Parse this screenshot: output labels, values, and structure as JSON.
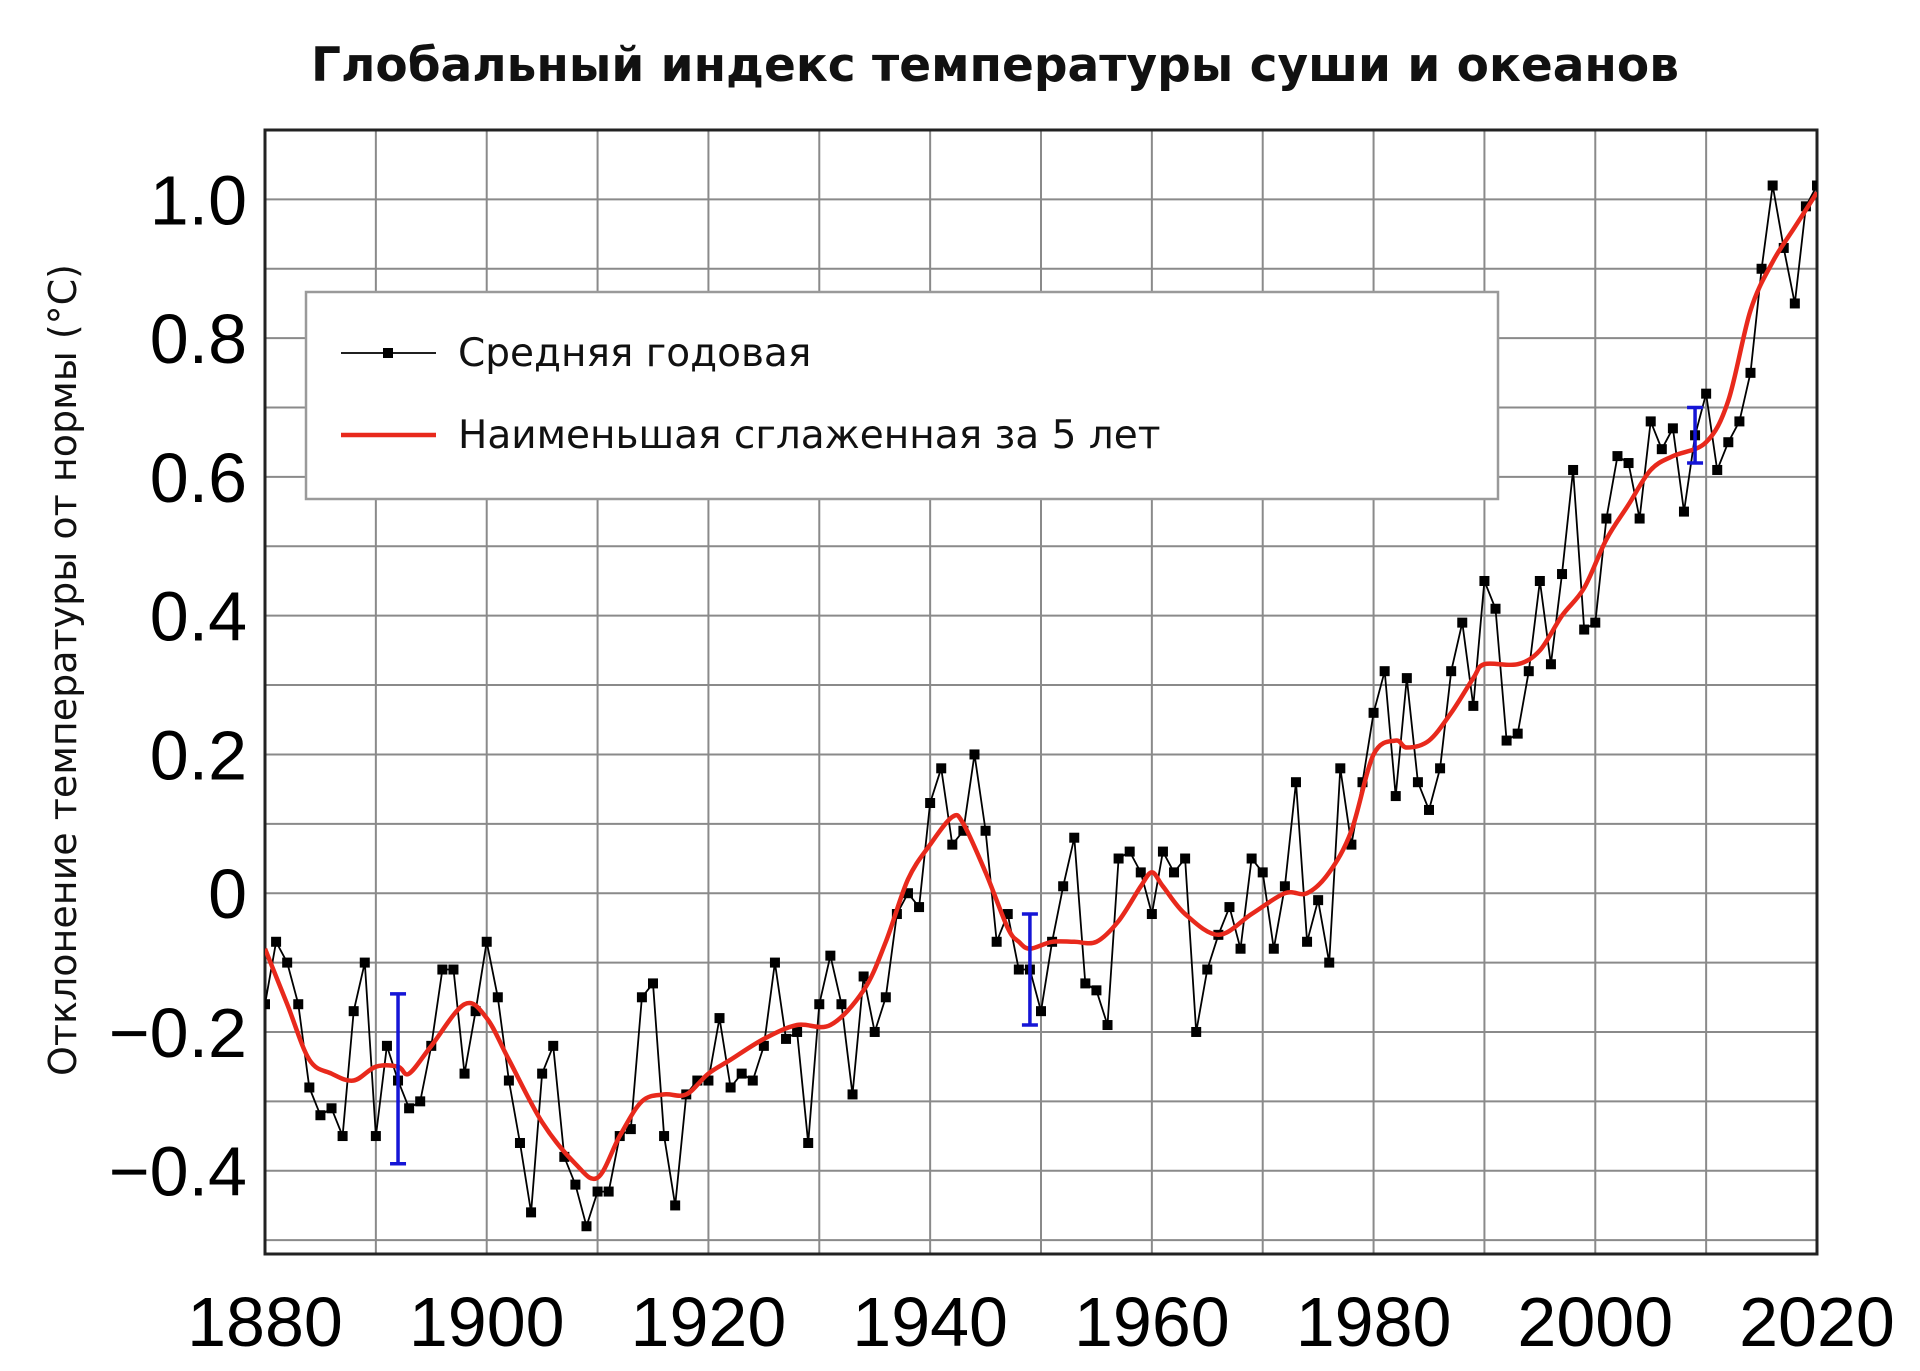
{
  "chart_data": {
    "type": "line",
    "title": "Глобальный индекс температуры суши и океанов",
    "ylabel": "Отклонение температуры от нормы (°C)",
    "xlabel": "",
    "xlim": [
      1880,
      2020
    ],
    "ylim": [
      -0.52,
      1.1
    ],
    "x_ticks": [
      1880,
      1900,
      1920,
      1940,
      1960,
      1980,
      2000,
      2020
    ],
    "y_ticks": [
      {
        "value": -0.4,
        "label": "−0.4"
      },
      {
        "value": -0.2,
        "label": "−0.2"
      },
      {
        "value": 0,
        "label": "0"
      },
      {
        "value": 0.2,
        "label": "0.2"
      },
      {
        "value": 0.4,
        "label": "0.4"
      },
      {
        "value": 0.6,
        "label": "0.6"
      },
      {
        "value": 0.8,
        "label": "0.8"
      },
      {
        "value": 1.0,
        "label": "1.0"
      }
    ],
    "grid": true,
    "legend_position": "top-left",
    "series": [
      {
        "name": "Средняя годовая",
        "color": "#000000",
        "marker": "square",
        "x": [
          1880,
          1881,
          1882,
          1883,
          1884,
          1885,
          1886,
          1887,
          1888,
          1889,
          1890,
          1891,
          1892,
          1893,
          1894,
          1895,
          1896,
          1897,
          1898,
          1899,
          1900,
          1901,
          1902,
          1903,
          1904,
          1905,
          1906,
          1907,
          1908,
          1909,
          1910,
          1911,
          1912,
          1913,
          1914,
          1915,
          1916,
          1917,
          1918,
          1919,
          1920,
          1921,
          1922,
          1923,
          1924,
          1925,
          1926,
          1927,
          1928,
          1929,
          1930,
          1931,
          1932,
          1933,
          1934,
          1935,
          1936,
          1937,
          1938,
          1939,
          1940,
          1941,
          1942,
          1943,
          1944,
          1945,
          1946,
          1947,
          1948,
          1949,
          1950,
          1951,
          1952,
          1953,
          1954,
          1955,
          1956,
          1957,
          1958,
          1959,
          1960,
          1961,
          1962,
          1963,
          1964,
          1965,
          1966,
          1967,
          1968,
          1969,
          1970,
          1971,
          1972,
          1973,
          1974,
          1975,
          1976,
          1977,
          1978,
          1979,
          1980,
          1981,
          1982,
          1983,
          1984,
          1985,
          1986,
          1987,
          1988,
          1989,
          1990,
          1991,
          1992,
          1993,
          1994,
          1995,
          1996,
          1997,
          1998,
          1999,
          2000,
          2001,
          2002,
          2003,
          2004,
          2005,
          2006,
          2007,
          2008,
          2009,
          2010,
          2011,
          2012,
          2013,
          2014,
          2015,
          2016,
          2017,
          2018,
          2019,
          2020
        ],
        "y": [
          -0.16,
          -0.07,
          -0.1,
          -0.16,
          -0.28,
          -0.32,
          -0.31,
          -0.35,
          -0.17,
          -0.1,
          -0.35,
          -0.22,
          -0.27,
          -0.31,
          -0.3,
          -0.22,
          -0.11,
          -0.11,
          -0.26,
          -0.17,
          -0.07,
          -0.15,
          -0.27,
          -0.36,
          -0.46,
          -0.26,
          -0.22,
          -0.38,
          -0.42,
          -0.48,
          -0.43,
          -0.43,
          -0.35,
          -0.34,
          -0.15,
          -0.13,
          -0.35,
          -0.45,
          -0.29,
          -0.27,
          -0.27,
          -0.18,
          -0.28,
          -0.26,
          -0.27,
          -0.22,
          -0.1,
          -0.21,
          -0.2,
          -0.36,
          -0.16,
          -0.09,
          -0.16,
          -0.29,
          -0.12,
          -0.2,
          -0.15,
          -0.03,
          0.0,
          -0.02,
          0.13,
          0.18,
          0.07,
          0.09,
          0.2,
          0.09,
          -0.07,
          -0.03,
          -0.11,
          -0.11,
          -0.17,
          -0.07,
          0.01,
          0.08,
          -0.13,
          -0.14,
          -0.19,
          0.05,
          0.06,
          0.03,
          -0.03,
          0.06,
          0.03,
          0.05,
          -0.2,
          -0.11,
          -0.06,
          -0.02,
          -0.08,
          0.05,
          0.03,
          -0.08,
          0.01,
          0.16,
          -0.07,
          -0.01,
          -0.1,
          0.18,
          0.07,
          0.16,
          0.26,
          0.32,
          0.14,
          0.31,
          0.16,
          0.12,
          0.18,
          0.32,
          0.39,
          0.27,
          0.45,
          0.41,
          0.22,
          0.23,
          0.32,
          0.45,
          0.33,
          0.46,
          0.61,
          0.38,
          0.39,
          0.54,
          0.63,
          0.62,
          0.54,
          0.68,
          0.64,
          0.67,
          0.55,
          0.66,
          0.72,
          0.61,
          0.65,
          0.68,
          0.75,
          0.9,
          1.02,
          0.93,
          0.85,
          0.99,
          1.02
        ]
      },
      {
        "name": "Наименьшая сглаженная за 5 лет",
        "color": "#e8291c",
        "x": [
          1880,
          1882,
          1884,
          1886,
          1888,
          1890,
          1892,
          1893,
          1895,
          1898,
          1900,
          1902,
          1905,
          1908,
          1910,
          1912,
          1914,
          1916,
          1918,
          1920,
          1922,
          1925,
          1928,
          1931,
          1934,
          1936,
          1938,
          1940,
          1942,
          1943,
          1945,
          1947,
          1948,
          1949,
          1951,
          1953,
          1955,
          1957,
          1959,
          1960,
          1961,
          1963,
          1966,
          1969,
          1972,
          1974,
          1976,
          1978,
          1980,
          1982,
          1983,
          1985,
          1987,
          1989,
          1990,
          1993,
          1995,
          1997,
          1999,
          2001,
          2003,
          2005,
          2007,
          2010,
          2012,
          2014,
          2016,
          2018,
          2020
        ],
        "y": [
          -0.08,
          -0.16,
          -0.24,
          -0.26,
          -0.27,
          -0.25,
          -0.25,
          -0.26,
          -0.22,
          -0.16,
          -0.18,
          -0.24,
          -0.33,
          -0.39,
          -0.41,
          -0.35,
          -0.3,
          -0.29,
          -0.29,
          -0.26,
          -0.24,
          -0.21,
          -0.19,
          -0.19,
          -0.14,
          -0.07,
          0.02,
          0.07,
          0.11,
          0.1,
          0.03,
          -0.05,
          -0.07,
          -0.08,
          -0.07,
          -0.07,
          -0.07,
          -0.04,
          0.01,
          0.03,
          0.01,
          -0.03,
          -0.06,
          -0.03,
          0.0,
          0.0,
          0.03,
          0.09,
          0.2,
          0.22,
          0.21,
          0.22,
          0.26,
          0.31,
          0.33,
          0.33,
          0.35,
          0.4,
          0.44,
          0.51,
          0.56,
          0.61,
          0.63,
          0.65,
          0.71,
          0.84,
          0.91,
          0.96,
          1.01
        ]
      }
    ],
    "error_bars": [
      {
        "x": 1892,
        "low": -0.39,
        "high": -0.145,
        "color": "#1515d6"
      },
      {
        "x": 1949,
        "low": -0.19,
        "high": -0.03,
        "color": "#1515d6"
      },
      {
        "x": 2009,
        "low": 0.62,
        "high": 0.7,
        "color": "#1515d6"
      }
    ]
  }
}
